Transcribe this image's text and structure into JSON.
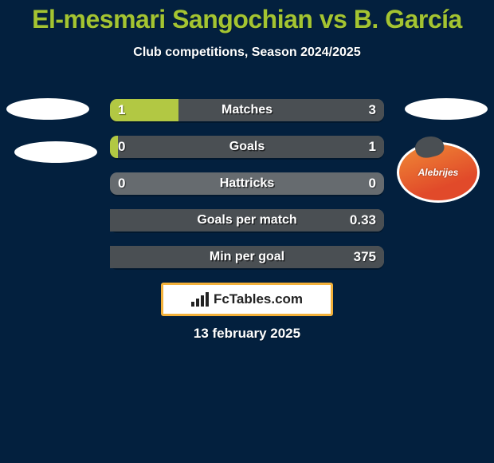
{
  "colors": {
    "page_bg": "#03203e",
    "title_color": "#a4c431",
    "text_color": "#ffffff",
    "oval_fill": "#ffffff",
    "row_bg": "#666b6f",
    "bar_left": "#b2c843",
    "bar_right": "#4a4f53",
    "val_color": "#ffffff",
    "label_color": "#ffffff",
    "logo_bg": "#ffffff",
    "logo_border": "#f3b13a",
    "logo_text": "#222222",
    "badge_bg": "#ffffff",
    "badge_grad_a": "#e14a2a",
    "badge_grad_b": "#f08b36",
    "badge_text": "#ffffff",
    "badge_bird": "#4a4f53"
  },
  "title": "El-mesmari Sangochian vs B. García",
  "subtitle": "Club competitions, Season 2024/2025",
  "rows": [
    {
      "label": "Matches",
      "left": "1",
      "right": "3",
      "left_pct": 25,
      "right_pct": 75
    },
    {
      "label": "Goals",
      "left": "0",
      "right": "1",
      "left_pct": 3,
      "right_pct": 97
    },
    {
      "label": "Hattricks",
      "left": "0",
      "right": "0",
      "left_pct": 0,
      "right_pct": 0
    },
    {
      "label": "Goals per match",
      "left": "",
      "right": "0.33",
      "left_pct": 0,
      "right_pct": 100
    },
    {
      "label": "Min per goal",
      "left": "",
      "right": "375",
      "left_pct": 0,
      "right_pct": 100
    }
  ],
  "badge_text": "Alebrijes",
  "logo_text": "FcTables.com",
  "date": "13 february 2025",
  "fonts": {
    "title_size": 32,
    "subtitle_size": 16,
    "row_label_size": 16,
    "row_value_size": 17,
    "date_size": 17,
    "logo_size": 17
  }
}
